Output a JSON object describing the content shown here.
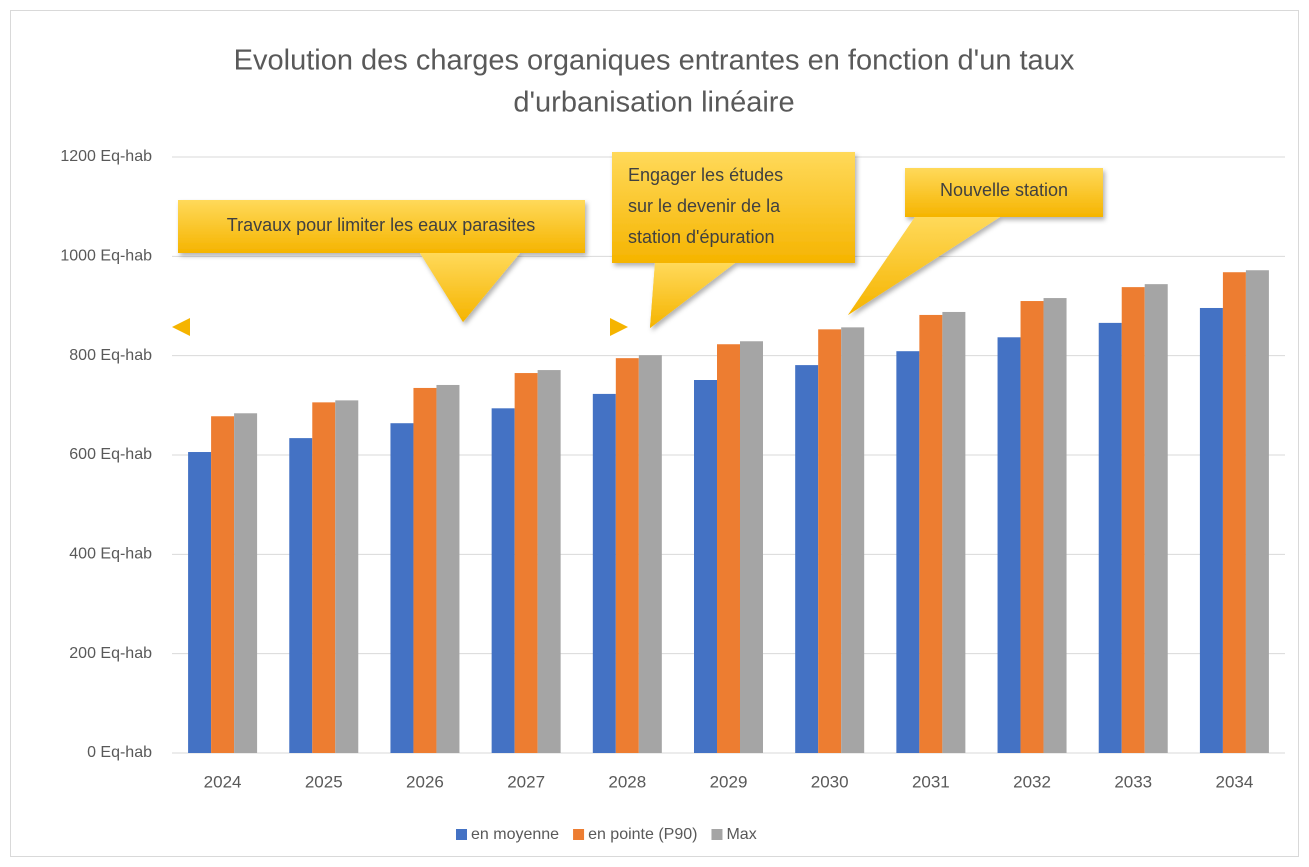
{
  "chart_data": {
    "type": "bar",
    "title": [
      "Evolution des charges organiques entrantes en fonction d'un taux",
      "d'urbanisation linéaire"
    ],
    "categories": [
      "2024",
      "2025",
      "2026",
      "2027",
      "2028",
      "2029",
      "2030",
      "2031",
      "2032",
      "2033",
      "2034"
    ],
    "series": [
      {
        "name": "en moyenne",
        "color": "#4472c4",
        "values": [
          606,
          634,
          664,
          694,
          723,
          751,
          781,
          809,
          837,
          866,
          896
        ]
      },
      {
        "name": "en pointe (P90)",
        "color": "#ed7d31",
        "values": [
          678,
          706,
          735,
          765,
          795,
          823,
          853,
          882,
          910,
          938,
          968
        ]
      },
      {
        "name": "Max",
        "color": "#a5a5a5",
        "values": [
          684,
          710,
          741,
          771,
          801,
          829,
          857,
          888,
          916,
          944,
          972
        ]
      }
    ],
    "ylim": [
      0,
      1200
    ],
    "yticks": [
      {
        "value": 0,
        "label": "0 Eq-hab"
      },
      {
        "value": 200,
        "label": "200 Eq-hab"
      },
      {
        "value": 400,
        "label": "400 Eq-hab"
      },
      {
        "value": 600,
        "label": "600 Eq-hab"
      },
      {
        "value": 800,
        "label": "800 Eq-hab"
      },
      {
        "value": 1000,
        "label": "1000 Eq-hab"
      },
      {
        "value": 1200,
        "label": "1200 Eq-hab"
      }
    ],
    "grid": true,
    "legend": "bottom",
    "annotations": [
      {
        "text": [
          "Travaux pour limiter les eaux parasites"
        ]
      },
      {
        "text": [
          "Engager les études",
          "sur le devenir de la",
          "station d'épuration"
        ]
      },
      {
        "text": [
          "Nouvelle station"
        ]
      }
    ]
  }
}
